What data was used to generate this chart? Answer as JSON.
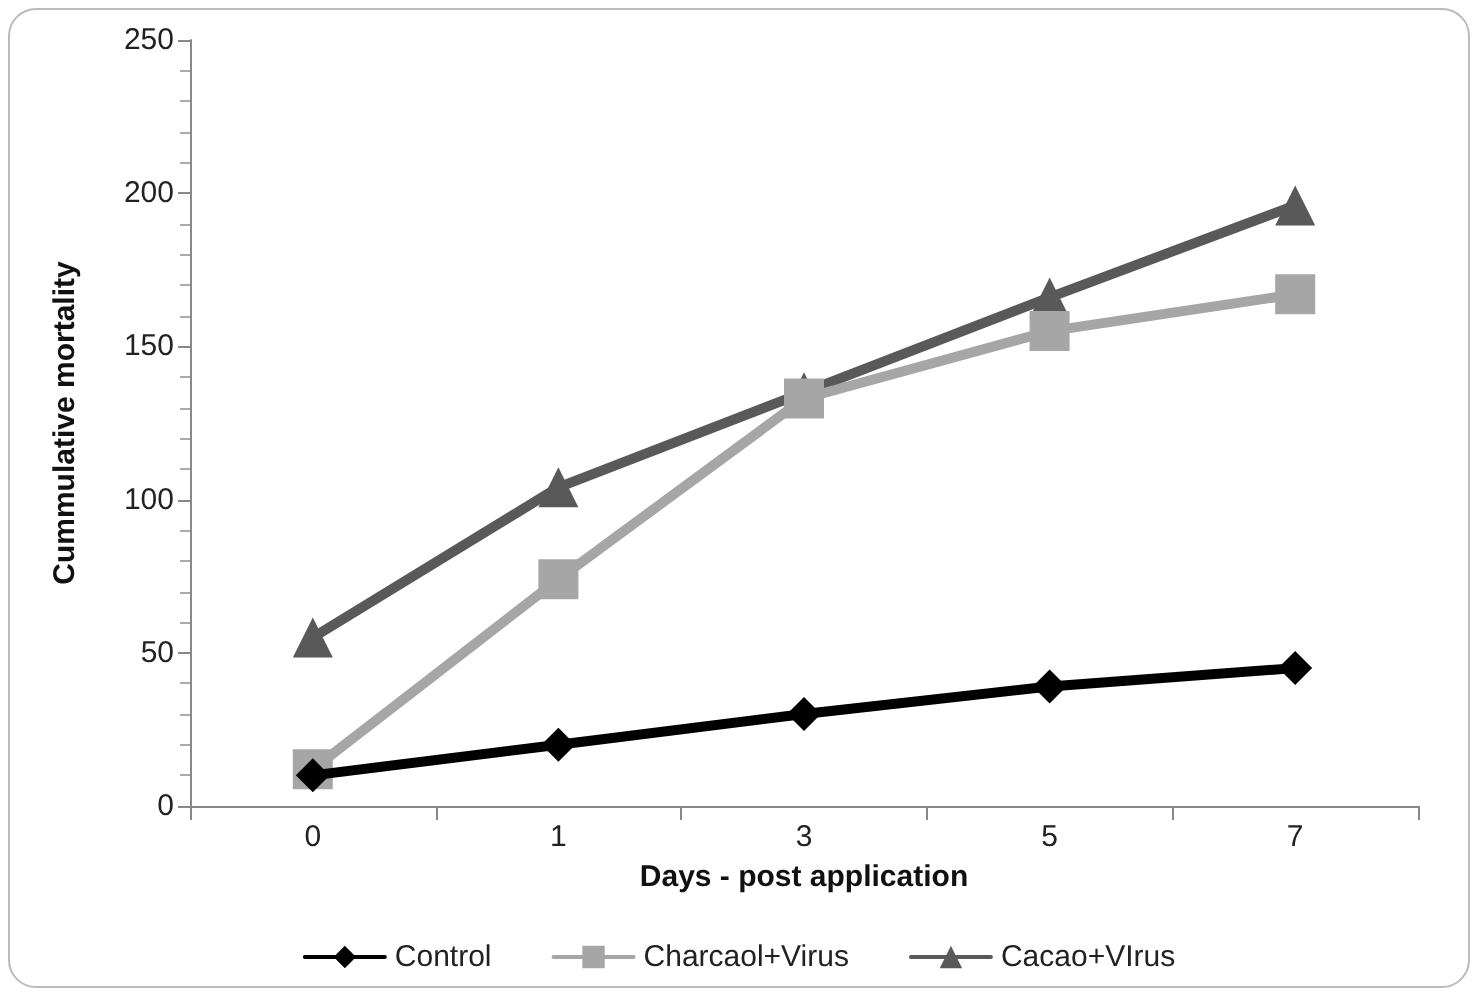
{
  "chart_data": {
    "type": "line",
    "xlabel": "Days - post application",
    "ylabel": "Cummulative mortality",
    "categories": [
      "0",
      "1",
      "3",
      "5",
      "7"
    ],
    "series": [
      {
        "name": "Control",
        "color": "#000000",
        "marker": "diamond",
        "values": [
          10,
          20,
          30,
          39,
          45
        ]
      },
      {
        "name": "Charcaol+Virus",
        "color": "#a6a6a6",
        "marker": "square",
        "values": [
          12,
          74,
          133,
          155,
          167
        ]
      },
      {
        "name": "Cacao+VIrus",
        "color": "#595959",
        "marker": "triangle",
        "values": [
          55,
          104,
          135,
          166,
          196
        ]
      }
    ],
    "ylim": [
      0,
      250
    ],
    "yticks": [
      0,
      50,
      100,
      150,
      200,
      250
    ],
    "grid": false,
    "legend": "bottom",
    "line_style": "solid"
  }
}
